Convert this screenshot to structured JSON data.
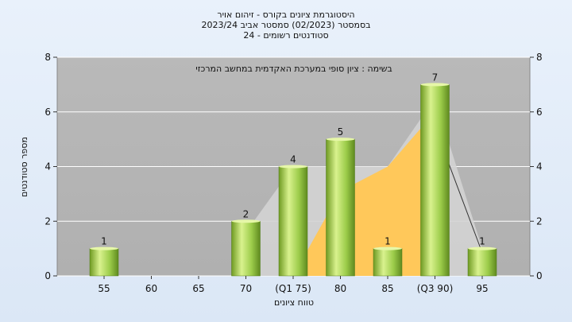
{
  "chart_data": {
    "type": "bar",
    "title_lines": [
      "היסטוגרמת ציונים בקורס - זיהום אויר",
      "בסמסטר  (02/2023)  סמסטר אביב 2023/24",
      "סטודנטים רשומים - 24"
    ],
    "annotation": "בשימה : ציון סופי במערכת האקדמית במחשב המרכזי",
    "xlabel": "טווח ציונים",
    "ylabel": "מספר סטודנטים",
    "ylim": [
      0,
      8
    ],
    "y_ticks": [
      "0",
      "2",
      "4",
      "6",
      "8"
    ],
    "categories": [
      "55",
      "60",
      "65",
      "70",
      "(Q1 75)",
      "80",
      "85",
      "(Q3 90)",
      "95"
    ],
    "values": [
      1,
      0,
      0,
      2,
      4,
      5,
      1,
      7,
      1
    ],
    "value_labels": [
      "1",
      "",
      "",
      "2",
      "4",
      "5",
      "1",
      "7",
      "1"
    ],
    "area_reference": [
      null,
      null,
      null,
      null,
      0,
      3.1,
      4,
      6,
      null
    ],
    "colors": {
      "bar_light": "#d6ef8a",
      "bar_mid": "#9ccc4a",
      "bar_dark": "#5f8a1f",
      "plot_bg": "#b7b7b7",
      "area_fill": "#ffc85a",
      "gray_band": "#d3d3d3"
    }
  }
}
